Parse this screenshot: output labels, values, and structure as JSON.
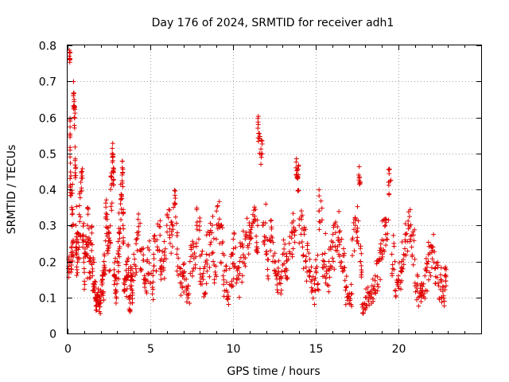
{
  "chart_data": {
    "type": "scatter",
    "title": "Day 176 of 2024, SRMTID for receiver adh1",
    "xlabel": "GPS time / hours",
    "ylabel": "SRMTID / TECUs",
    "xlim": [
      0,
      25
    ],
    "ylim": [
      0,
      0.8
    ],
    "xticks": [
      0,
      5,
      10,
      15,
      20
    ],
    "xtick_labels": [
      "0",
      "5",
      "10",
      "15",
      "20"
    ],
    "yticks": [
      0,
      0.1,
      0.2,
      0.3,
      0.4,
      0.5,
      0.6,
      0.7,
      0.8
    ],
    "ytick_labels": [
      "0",
      "0.1",
      "0.2",
      "0.3",
      "0.4",
      "0.5",
      "0.6",
      "0.7",
      "0.8"
    ],
    "grid": true,
    "marker": "+",
    "color": "#e00000",
    "series": [
      {
        "name": "SRMTID",
        "x": [
          0.05,
          0.1,
          0.15,
          0.15,
          0.2,
          0.25,
          0.3,
          0.35,
          0.4,
          0.45,
          0.5,
          0.55,
          0.6,
          0.7,
          0.8,
          0.9,
          1.0,
          1.1,
          1.2,
          1.3,
          1.4,
          1.5,
          1.6,
          1.7,
          1.8,
          1.9,
          2.0,
          2.1,
          2.2,
          2.3,
          2.4,
          2.5,
          2.6,
          2.7,
          2.75,
          2.8,
          2.9,
          3.0,
          3.1,
          3.2,
          3.3,
          3.35,
          3.4,
          3.5,
          3.6,
          3.7,
          3.8,
          3.9,
          4.0,
          4.2,
          4.4,
          4.6,
          4.8,
          5.0,
          5.2,
          5.4,
          5.6,
          5.8,
          6.0,
          6.2,
          6.4,
          6.6,
          6.8,
          7.0,
          7.2,
          7.4,
          7.6,
          7.8,
          8.0,
          8.2,
          8.4,
          8.6,
          8.8,
          9.0,
          9.2,
          9.4,
          9.6,
          9.8,
          10.0,
          10.2,
          10.4,
          10.6,
          10.8,
          11.0,
          11.2,
          11.4,
          11.5,
          11.6,
          11.8,
          12.0,
          12.2,
          12.4,
          12.6,
          12.8,
          13.0,
          13.2,
          13.4,
          13.6,
          13.8,
          13.9,
          14.0,
          14.2,
          14.4,
          14.6,
          14.8,
          15.0,
          15.2,
          15.4,
          15.6,
          15.8,
          16.0,
          16.2,
          16.4,
          16.6,
          16.8,
          17.0,
          17.2,
          17.4,
          17.6,
          17.7,
          17.8,
          18.0,
          18.2,
          18.4,
          18.6,
          18.8,
          19.0,
          19.2,
          19.4,
          19.6,
          19.8,
          20.0,
          20.2,
          20.4,
          20.6,
          20.8,
          21.0,
          21.2,
          21.4,
          21.6,
          21.8,
          22.0,
          22.2,
          22.4,
          22.6,
          22.8
        ],
        "y": [
          0.18,
          0.77,
          0.55,
          0.43,
          0.2,
          0.35,
          0.25,
          0.66,
          0.6,
          0.48,
          0.3,
          0.22,
          0.28,
          0.33,
          0.42,
          0.26,
          0.18,
          0.22,
          0.3,
          0.2,
          0.25,
          0.16,
          0.12,
          0.09,
          0.1,
          0.08,
          0.12,
          0.14,
          0.2,
          0.32,
          0.27,
          0.24,
          0.4,
          0.5,
          0.45,
          0.16,
          0.12,
          0.2,
          0.28,
          0.36,
          0.44,
          0.3,
          0.14,
          0.15,
          0.2,
          0.1,
          0.16,
          0.12,
          0.22,
          0.28,
          0.18,
          0.15,
          0.2,
          0.14,
          0.22,
          0.26,
          0.18,
          0.2,
          0.3,
          0.25,
          0.35,
          0.22,
          0.14,
          0.16,
          0.12,
          0.2,
          0.24,
          0.3,
          0.18,
          0.15,
          0.22,
          0.28,
          0.2,
          0.34,
          0.25,
          0.16,
          0.12,
          0.18,
          0.22,
          0.14,
          0.2,
          0.24,
          0.28,
          0.3,
          0.33,
          0.27,
          0.57,
          0.5,
          0.3,
          0.22,
          0.26,
          0.2,
          0.16,
          0.14,
          0.22,
          0.18,
          0.25,
          0.28,
          0.46,
          0.43,
          0.3,
          0.24,
          0.2,
          0.16,
          0.12,
          0.18,
          0.34,
          0.22,
          0.14,
          0.2,
          0.24,
          0.28,
          0.22,
          0.18,
          0.12,
          0.1,
          0.26,
          0.3,
          0.44,
          0.2,
          0.08,
          0.1,
          0.09,
          0.12,
          0.16,
          0.2,
          0.26,
          0.3,
          0.42,
          0.22,
          0.12,
          0.16,
          0.2,
          0.26,
          0.3,
          0.24,
          0.14,
          0.1,
          0.12,
          0.16,
          0.2,
          0.24,
          0.18,
          0.14,
          0.1,
          0.16
        ],
        "spread": [
          0.04,
          0.02,
          0.06,
          0.05,
          0.05,
          0.08,
          0.06,
          0.05,
          0.04,
          0.05,
          0.08,
          0.07,
          0.08,
          0.07,
          0.05,
          0.07,
          0.06,
          0.07,
          0.06,
          0.06,
          0.06,
          0.05,
          0.04,
          0.03,
          0.03,
          0.03,
          0.04,
          0.05,
          0.06,
          0.06,
          0.07,
          0.07,
          0.06,
          0.03,
          0.04,
          0.05,
          0.04,
          0.06,
          0.07,
          0.06,
          0.04,
          0.07,
          0.04,
          0.05,
          0.06,
          0.04,
          0.05,
          0.05,
          0.06,
          0.06,
          0.06,
          0.05,
          0.06,
          0.05,
          0.06,
          0.06,
          0.06,
          0.06,
          0.05,
          0.06,
          0.05,
          0.07,
          0.05,
          0.05,
          0.04,
          0.06,
          0.06,
          0.05,
          0.06,
          0.05,
          0.07,
          0.06,
          0.07,
          0.05,
          0.06,
          0.06,
          0.05,
          0.06,
          0.07,
          0.05,
          0.06,
          0.06,
          0.06,
          0.05,
          0.03,
          0.05,
          0.04,
          0.05,
          0.06,
          0.07,
          0.06,
          0.06,
          0.05,
          0.04,
          0.06,
          0.06,
          0.06,
          0.06,
          0.03,
          0.04,
          0.05,
          0.06,
          0.06,
          0.05,
          0.04,
          0.06,
          0.06,
          0.07,
          0.05,
          0.06,
          0.07,
          0.06,
          0.07,
          0.06,
          0.04,
          0.04,
          0.07,
          0.06,
          0.03,
          0.06,
          0.03,
          0.03,
          0.03,
          0.04,
          0.05,
          0.06,
          0.06,
          0.06,
          0.04,
          0.06,
          0.04,
          0.05,
          0.06,
          0.06,
          0.05,
          0.06,
          0.05,
          0.04,
          0.04,
          0.05,
          0.06,
          0.06,
          0.05,
          0.05,
          0.03,
          0.04
        ]
      }
    ]
  }
}
